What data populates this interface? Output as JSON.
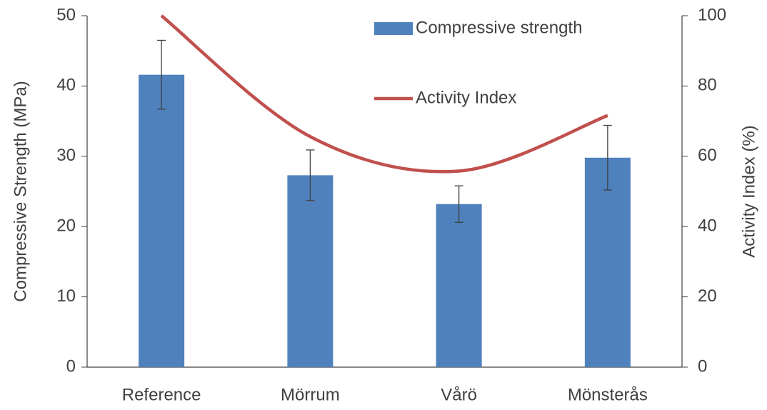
{
  "chart_data": {
    "type": "bar",
    "categories": [
      "Reference",
      "Mörrum",
      "Vårö",
      "Mönsterås"
    ],
    "series": [
      {
        "name": "Compressive strength",
        "type": "bar",
        "color": "#4f81bd",
        "values": [
          41.6,
          27.3,
          23.2,
          29.8
        ],
        "errors": [
          4.9,
          3.6,
          2.6,
          4.6
        ]
      },
      {
        "name": "Activity Index",
        "type": "line",
        "axis": "y2",
        "smooth": true,
        "color": "#c0504d",
        "values": [
          100,
          65.6,
          55.8,
          71.6
        ]
      }
    ],
    "y_label": "Compressive Strength (MPa)",
    "y2_label": "Activity Index (%)",
    "ylim": [
      0,
      50
    ],
    "yticks": [
      0,
      10,
      20,
      30,
      40,
      50
    ],
    "y2lim": [
      0,
      100
    ],
    "y2ticks": [
      0,
      20,
      40,
      60,
      80,
      100
    ],
    "grid": false,
    "legend": "upper center"
  }
}
